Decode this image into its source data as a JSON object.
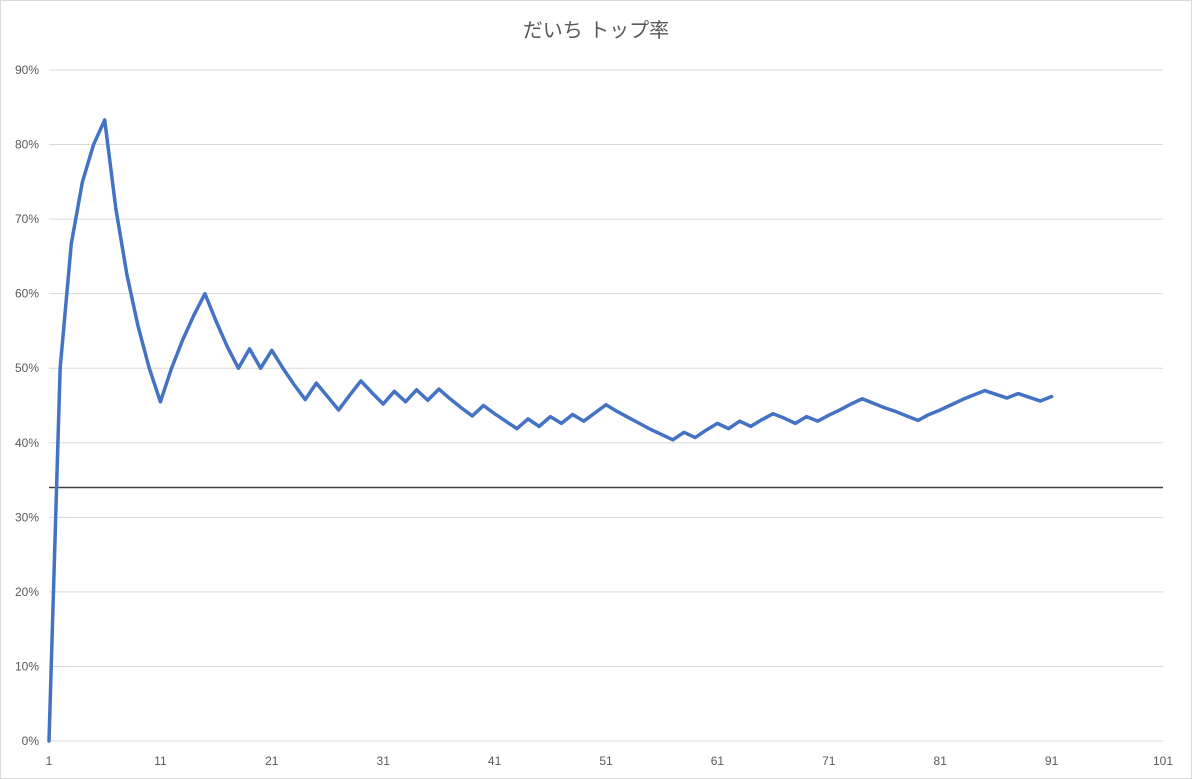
{
  "chart_data": {
    "type": "line",
    "title": "だいち トップ率",
    "xlabel": "",
    "ylabel": "",
    "xlim": [
      1,
      101
    ],
    "ylim": [
      0,
      0.9
    ],
    "x_ticks": [
      "1",
      "11",
      "21",
      "31",
      "41",
      "51",
      "61",
      "71",
      "81",
      "91",
      "101"
    ],
    "y_ticks": [
      "0%",
      "10%",
      "20%",
      "30%",
      "40%",
      "50%",
      "60%",
      "70%",
      "80%",
      "90%"
    ],
    "grid": true,
    "legend": "none",
    "reference_line": {
      "y": 0.34,
      "color": "#404040"
    },
    "series": [
      {
        "color": "#4472c4",
        "x": [
          1,
          2,
          3,
          4,
          5,
          6,
          7,
          8,
          9,
          10,
          11,
          12,
          13,
          14,
          15,
          16,
          17,
          18,
          19,
          20,
          21,
          22,
          23,
          24,
          25,
          26,
          27,
          28,
          29,
          30,
          31,
          32,
          33,
          34,
          35,
          36,
          37,
          38,
          39,
          40,
          41,
          42,
          43,
          44,
          45,
          46,
          47,
          48,
          49,
          50,
          51,
          52,
          53,
          54,
          55,
          56,
          57,
          58,
          59,
          60,
          61,
          62,
          63,
          64,
          65,
          66,
          67,
          68,
          69,
          70,
          71,
          72,
          73,
          74,
          75,
          76,
          77,
          78,
          79,
          80,
          81,
          82,
          83,
          84,
          85,
          86,
          87,
          88,
          89,
          90,
          91
        ],
        "values": [
          0,
          0.5,
          0.667,
          0.75,
          0.8,
          0.833,
          0.714,
          0.625,
          0.556,
          0.5,
          0.455,
          0.5,
          0.538,
          0.571,
          0.6,
          0.563,
          0.529,
          0.5,
          0.526,
          0.5,
          0.524,
          0.5,
          0.478,
          0.458,
          0.48,
          0.462,
          0.444,
          0.464,
          0.483,
          0.467,
          0.452,
          0.469,
          0.455,
          0.471,
          0.457,
          0.472,
          0.459,
          0.447,
          0.436,
          0.45,
          0.439,
          0.429,
          0.419,
          0.432,
          0.422,
          0.435,
          0.426,
          0.438,
          0.429,
          0.44,
          0.451,
          0.442,
          0.434,
          0.426,
          0.418,
          0.411,
          0.404,
          0.414,
          0.407,
          0.417,
          0.426,
          0.419,
          0.429,
          0.422,
          0.431,
          0.439,
          0.433,
          0.426,
          0.435,
          0.429,
          0.437,
          0.444,
          0.452,
          0.459,
          0.453,
          0.447,
          0.442,
          0.436,
          0.43,
          0.438,
          0.444,
          0.451,
          0.458,
          0.464,
          0.47,
          0.465,
          0.46,
          0.466,
          0.461,
          0.456,
          0.462
        ]
      }
    ]
  }
}
